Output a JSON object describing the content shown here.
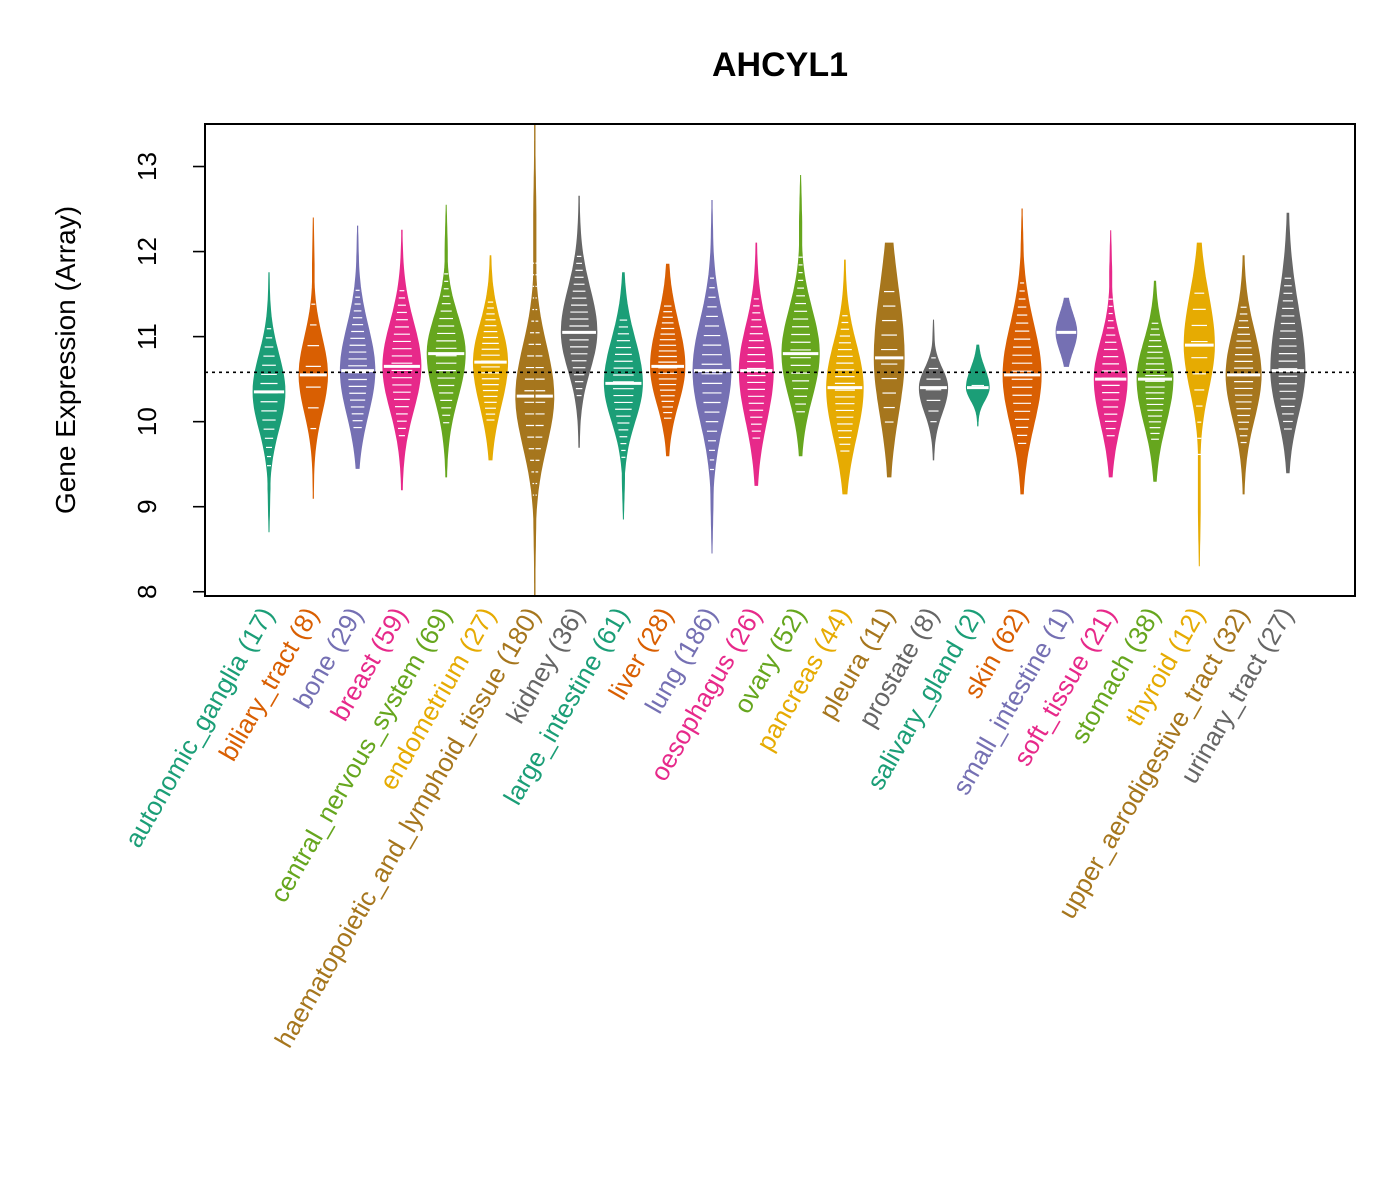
{
  "chart_data": {
    "type": "violin",
    "title": "AHCYL1",
    "ylabel": "Gene Expression (Array)",
    "xlabel": "",
    "ylim": [
      7.95,
      13.5
    ],
    "yticks": [
      8,
      9,
      10,
      11,
      12,
      13
    ],
    "reference_line": 10.58,
    "grid": false,
    "categories": [
      {
        "name": "autonomic_ganglia",
        "n": 17,
        "label": "autonomic_ganglia (17)",
        "color": "#1B9E77",
        "min": 8.7,
        "max": 11.75,
        "median": 10.35,
        "q1": 10.05,
        "q3": 10.65
      },
      {
        "name": "biliary_tract",
        "n": 8,
        "label": "biliary_tract (8)",
        "color": "#D95F02",
        "min": 9.1,
        "max": 12.4,
        "median": 10.55,
        "q1": 10.25,
        "q3": 10.85
      },
      {
        "name": "bone",
        "n": 29,
        "label": "bone (29)",
        "color": "#7570B3",
        "min": 9.45,
        "max": 12.3,
        "median": 10.6,
        "q1": 10.25,
        "q3": 10.95
      },
      {
        "name": "breast",
        "n": 59,
        "label": "breast (59)",
        "color": "#E7298A",
        "min": 9.2,
        "max": 12.25,
        "median": 10.65,
        "q1": 10.3,
        "q3": 11.0
      },
      {
        "name": "central_nervous_system",
        "n": 69,
        "label": "central_nervous_system (69)",
        "color": "#66A61E",
        "min": 9.35,
        "max": 12.55,
        "median": 10.8,
        "q1": 10.45,
        "q3": 11.1
      },
      {
        "name": "endometrium",
        "n": 27,
        "label": "endometrium (27)",
        "color": "#E6AB02",
        "min": 9.55,
        "max": 11.95,
        "median": 10.7,
        "q1": 10.35,
        "q3": 11.0
      },
      {
        "name": "haematopoietic_and_lymphoid_tissue",
        "n": 180,
        "label": "haematopoietic_and_lymphoid_tissue (180)",
        "color": "#A6761D",
        "min": 8.1,
        "max": 13.3,
        "median": 10.3,
        "q1": 9.9,
        "q3": 10.7
      },
      {
        "name": "kidney",
        "n": 36,
        "label": "kidney (36)",
        "color": "#666666",
        "min": 9.7,
        "max": 12.65,
        "median": 11.05,
        "q1": 10.75,
        "q3": 11.4
      },
      {
        "name": "large_intestine",
        "n": 61,
        "label": "large_intestine (61)",
        "color": "#1B9E77",
        "min": 8.85,
        "max": 11.75,
        "median": 10.45,
        "q1": 10.15,
        "q3": 10.8
      },
      {
        "name": "liver",
        "n": 28,
        "label": "liver (28)",
        "color": "#D95F02",
        "min": 9.6,
        "max": 11.85,
        "median": 10.65,
        "q1": 10.35,
        "q3": 11.0
      },
      {
        "name": "lung",
        "n": 186,
        "label": "lung (186)",
        "color": "#7570B3",
        "min": 8.45,
        "max": 12.6,
        "median": 10.6,
        "q1": 10.2,
        "q3": 11.0
      },
      {
        "name": "oesophagus",
        "n": 26,
        "label": "oesophagus (26)",
        "color": "#E7298A",
        "min": 9.25,
        "max": 12.1,
        "median": 10.6,
        "q1": 10.2,
        "q3": 10.95
      },
      {
        "name": "ovary",
        "n": 52,
        "label": "ovary (52)",
        "color": "#66A61E",
        "min": 9.6,
        "max": 12.9,
        "median": 10.8,
        "q1": 10.45,
        "q3": 11.15
      },
      {
        "name": "pancreas",
        "n": 44,
        "label": "pancreas (44)",
        "color": "#E6AB02",
        "min": 9.15,
        "max": 11.9,
        "median": 10.4,
        "q1": 10.0,
        "q3": 10.75
      },
      {
        "name": "pleura",
        "n": 11,
        "label": "pleura (11)",
        "color": "#A6761D",
        "min": 9.35,
        "max": 12.1,
        "median": 10.75,
        "q1": 10.3,
        "q3": 11.3
      },
      {
        "name": "prostate",
        "n": 8,
        "label": "prostate (8)",
        "color": "#666666",
        "min": 9.55,
        "max": 11.2,
        "median": 10.4,
        "q1": 10.2,
        "q3": 10.55
      },
      {
        "name": "salivary_gland",
        "n": 2,
        "label": "salivary_gland (2)",
        "color": "#1B9E77",
        "min": 9.95,
        "max": 10.9,
        "median": 10.4,
        "q1": 10.3,
        "q3": 10.55
      },
      {
        "name": "skin",
        "n": 62,
        "label": "skin (62)",
        "color": "#D95F02",
        "min": 9.15,
        "max": 12.5,
        "median": 10.55,
        "q1": 10.15,
        "q3": 10.95
      },
      {
        "name": "small_intestine",
        "n": 1,
        "label": "small_intestine (1)",
        "color": "#7570B3",
        "min": 10.65,
        "max": 11.45,
        "median": 11.05,
        "q1": 10.9,
        "q3": 11.2
      },
      {
        "name": "soft_tissue",
        "n": 21,
        "label": "soft_tissue (21)",
        "color": "#E7298A",
        "min": 9.35,
        "max": 12.25,
        "median": 10.5,
        "q1": 10.15,
        "q3": 10.8
      },
      {
        "name": "stomach",
        "n": 38,
        "label": "stomach (38)",
        "color": "#66A61E",
        "min": 9.3,
        "max": 11.65,
        "median": 10.5,
        "q1": 10.15,
        "q3": 10.8
      },
      {
        "name": "thyroid",
        "n": 12,
        "label": "thyroid (12)",
        "color": "#E6AB02",
        "min": 8.3,
        "max": 12.1,
        "median": 10.9,
        "q1": 10.55,
        "q3": 11.3
      },
      {
        "name": "upper_aerodigestive_tract",
        "n": 32,
        "label": "upper_aerodigestive_tract (32)",
        "color": "#A6761D",
        "min": 9.15,
        "max": 11.95,
        "median": 10.55,
        "q1": 10.2,
        "q3": 10.9
      },
      {
        "name": "urinary_tract",
        "n": 27,
        "label": "urinary_tract (27)",
        "color": "#666666",
        "min": 9.4,
        "max": 12.45,
        "median": 10.6,
        "q1": 10.25,
        "q3": 11.1
      }
    ]
  }
}
